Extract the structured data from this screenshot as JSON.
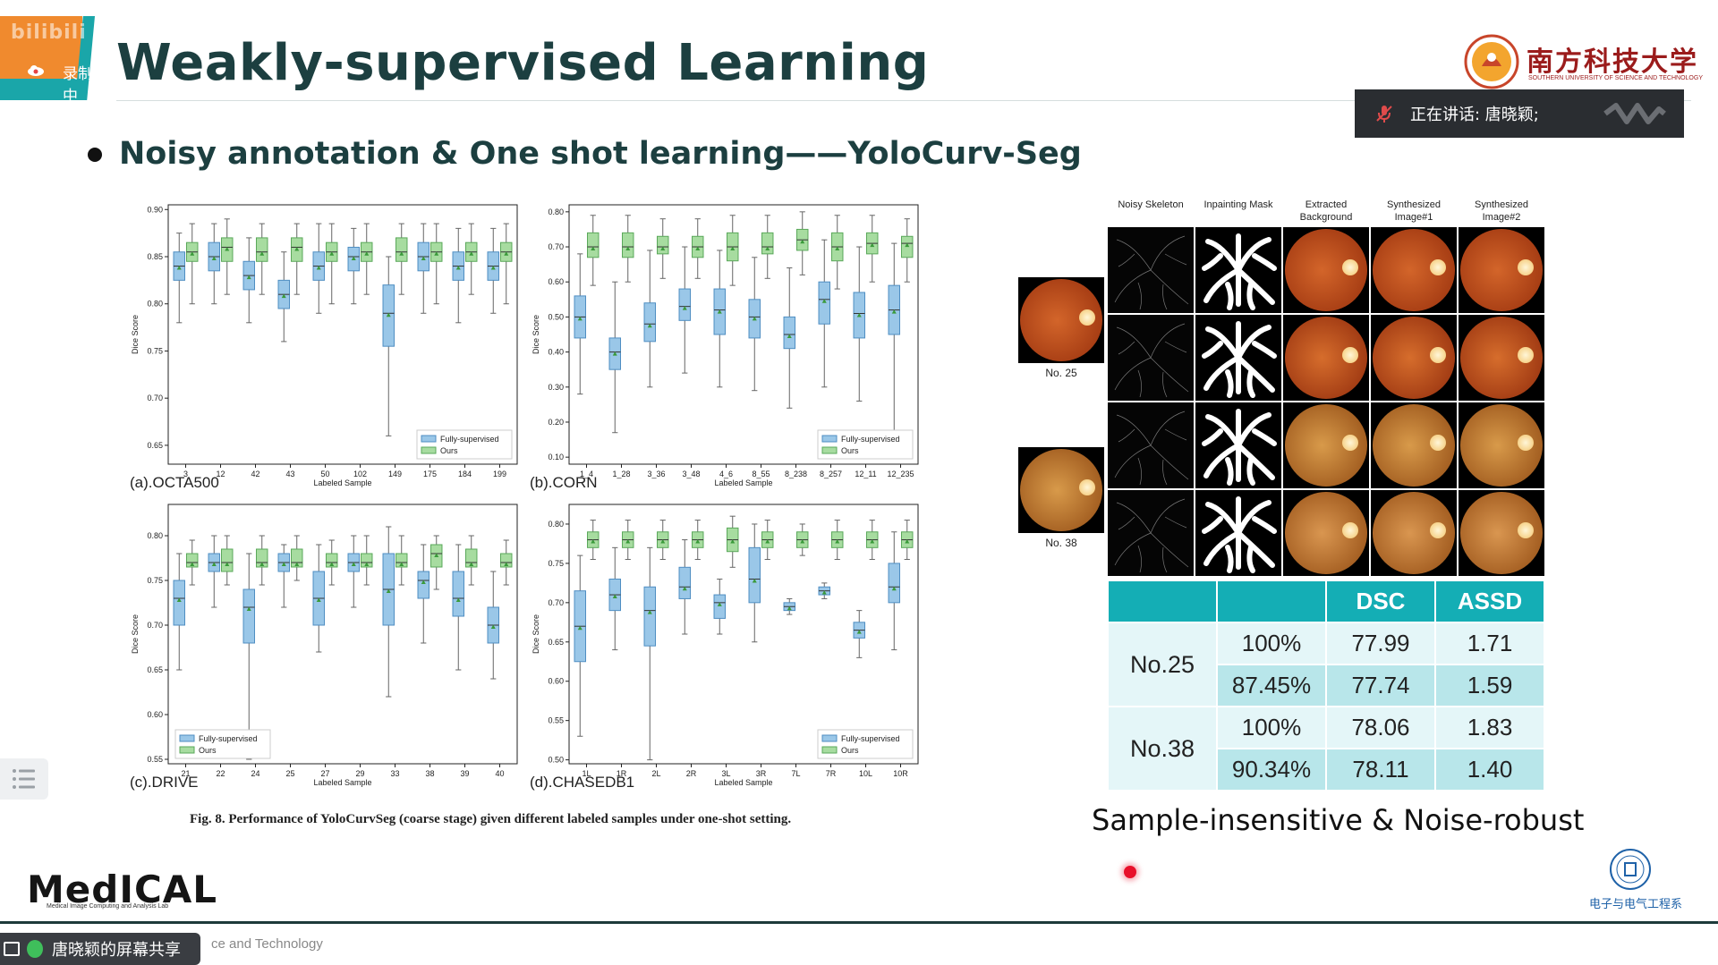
{
  "overlay": {
    "watermark": "bilibili",
    "recording_label": "录制中",
    "speaking_label": "正在讲话: 唐晓颖;",
    "share_label": "唐晓颖的屏幕共享"
  },
  "slide": {
    "title": "Weakly-supervised Learning",
    "bullet": "Noisy annotation & One shot learning——YoloCurv-Seg",
    "university_name": "南方科技大学",
    "university_sub": "SOUTHERN UNIVERSITY OF SCIENCE AND TECHNOLOGY",
    "figure_caption": "Fig. 8. Performance of YoloCurvSeg (coarse stage) given different labeled samples under one-shot setting.",
    "grid_headers": [
      "Noisy Skeleton",
      "Inpainting Mask",
      "Extracted Background",
      "Synthesized Image#1",
      "Synthesized Image#2"
    ],
    "side_labels": [
      "No. 25",
      "No. 38"
    ],
    "table": {
      "headers": [
        "",
        "",
        "DSC",
        "ASSD"
      ],
      "rows": [
        {
          "sample": "No.25",
          "pct": "100%",
          "dsc": "77.99",
          "assd": "1.71"
        },
        {
          "sample": "",
          "pct": "87.45%",
          "dsc": "77.74",
          "assd": "1.59"
        },
        {
          "sample": "No.38",
          "pct": "100%",
          "dsc": "78.06",
          "assd": "1.83"
        },
        {
          "sample": "",
          "pct": "90.34%",
          "dsc": "78.11",
          "assd": "1.40"
        }
      ]
    },
    "tagline": "Sample-insensitive & Noise-robust",
    "lab_name": "MedICAL",
    "lab_sub": "Medical Image Computing and Analysis Lab",
    "dept_name": "电子与电气工程系",
    "footer": "ce and Technology"
  },
  "colors": {
    "teal": "#14aeb5",
    "orange": "#f08a2e",
    "fully": "#9ac7e8",
    "ours": "#a7dca0"
  },
  "chart_data": [
    {
      "type": "box",
      "caption": "(a).OCTA500",
      "xlabel": "Labeled Sample",
      "ylabel": "Dice Score",
      "categories": [
        "3",
        "12",
        "42",
        "43",
        "50",
        "102",
        "149",
        "175",
        "184",
        "199"
      ],
      "yticks": [
        "0.65",
        "0.70",
        "0.75",
        "0.80",
        "0.85",
        "0.90"
      ],
      "ylim": [
        0.63,
        0.905
      ],
      "legend": [
        "Fully-supervised",
        "Ours"
      ],
      "series": [
        {
          "name": "Fully-supervised",
          "medians": [
            0.84,
            0.85,
            0.83,
            0.81,
            0.84,
            0.85,
            0.79,
            0.85,
            0.84,
            0.84
          ],
          "q1": [
            0.825,
            0.835,
            0.815,
            0.795,
            0.825,
            0.835,
            0.755,
            0.835,
            0.825,
            0.825
          ],
          "q3": [
            0.855,
            0.865,
            0.845,
            0.825,
            0.855,
            0.86,
            0.82,
            0.865,
            0.855,
            0.855
          ],
          "wlo": [
            0.78,
            0.8,
            0.78,
            0.76,
            0.79,
            0.8,
            0.66,
            0.79,
            0.78,
            0.79
          ],
          "whi": [
            0.875,
            0.885,
            0.87,
            0.855,
            0.885,
            0.88,
            0.85,
            0.885,
            0.88,
            0.88
          ]
        },
        {
          "name": "Ours",
          "medians": [
            0.855,
            0.86,
            0.855,
            0.86,
            0.855,
            0.855,
            0.855,
            0.855,
            0.855,
            0.855
          ],
          "q1": [
            0.845,
            0.845,
            0.845,
            0.845,
            0.845,
            0.845,
            0.845,
            0.845,
            0.845,
            0.845
          ],
          "q3": [
            0.865,
            0.87,
            0.87,
            0.87,
            0.865,
            0.865,
            0.87,
            0.865,
            0.865,
            0.865
          ],
          "wlo": [
            0.8,
            0.81,
            0.81,
            0.81,
            0.8,
            0.81,
            0.81,
            0.8,
            0.81,
            0.8
          ],
          "whi": [
            0.885,
            0.89,
            0.885,
            0.885,
            0.885,
            0.885,
            0.885,
            0.885,
            0.885,
            0.885
          ]
        }
      ]
    },
    {
      "type": "box",
      "caption": "(b).CORN",
      "xlabel": "Labeled Sample",
      "ylabel": "Dice Score",
      "categories": [
        "1_4",
        "1_28",
        "3_36",
        "3_48",
        "4_6",
        "8_55",
        "8_238",
        "8_257",
        "12_11",
        "12_235"
      ],
      "yticks": [
        "0.10",
        "0.20",
        "0.30",
        "0.40",
        "0.50",
        "0.60",
        "0.70",
        "0.80"
      ],
      "ylim": [
        0.08,
        0.82
      ],
      "legend": [
        "Fully-supervised",
        "Ours"
      ],
      "series": [
        {
          "name": "Fully-supervised",
          "medians": [
            0.5,
            0.4,
            0.48,
            0.53,
            0.52,
            0.5,
            0.45,
            0.55,
            0.51,
            0.52
          ],
          "q1": [
            0.44,
            0.35,
            0.43,
            0.49,
            0.45,
            0.44,
            0.41,
            0.48,
            0.44,
            0.45
          ],
          "q3": [
            0.56,
            0.44,
            0.54,
            0.58,
            0.58,
            0.55,
            0.5,
            0.6,
            0.57,
            0.59
          ],
          "wlo": [
            0.28,
            0.17,
            0.3,
            0.34,
            0.3,
            0.29,
            0.24,
            0.3,
            0.26,
            0.13
          ],
          "whi": [
            0.68,
            0.6,
            0.69,
            0.7,
            0.69,
            0.67,
            0.64,
            0.72,
            0.7,
            0.71
          ]
        },
        {
          "name": "Ours",
          "medians": [
            0.7,
            0.7,
            0.7,
            0.7,
            0.7,
            0.7,
            0.72,
            0.7,
            0.71,
            0.71
          ],
          "q1": [
            0.67,
            0.67,
            0.68,
            0.67,
            0.66,
            0.68,
            0.69,
            0.66,
            0.68,
            0.67
          ],
          "q3": [
            0.74,
            0.74,
            0.73,
            0.73,
            0.74,
            0.74,
            0.75,
            0.74,
            0.74,
            0.73
          ],
          "wlo": [
            0.59,
            0.6,
            0.61,
            0.61,
            0.59,
            0.61,
            0.62,
            0.58,
            0.6,
            0.6
          ],
          "whi": [
            0.79,
            0.79,
            0.78,
            0.78,
            0.79,
            0.79,
            0.8,
            0.79,
            0.79,
            0.78
          ]
        }
      ]
    },
    {
      "type": "box",
      "caption": "(c).DRIVE",
      "xlabel": "Labeled Sample",
      "ylabel": "Dice Score",
      "categories": [
        "21",
        "22",
        "24",
        "25",
        "27",
        "29",
        "33",
        "38",
        "39",
        "40"
      ],
      "yticks": [
        "0.55",
        "0.60",
        "0.65",
        "0.70",
        "0.75",
        "0.80"
      ],
      "ylim": [
        0.545,
        0.835
      ],
      "legend": [
        "Fully-supervised",
        "Ours"
      ],
      "series": [
        {
          "name": "Fully-supervised",
          "medians": [
            0.73,
            0.77,
            0.72,
            0.77,
            0.73,
            0.77,
            0.74,
            0.75,
            0.73,
            0.7
          ],
          "q1": [
            0.7,
            0.76,
            0.68,
            0.76,
            0.7,
            0.76,
            0.7,
            0.73,
            0.71,
            0.68
          ],
          "q3": [
            0.75,
            0.78,
            0.74,
            0.78,
            0.76,
            0.78,
            0.78,
            0.76,
            0.76,
            0.72
          ],
          "wlo": [
            0.65,
            0.72,
            0.55,
            0.72,
            0.67,
            0.72,
            0.62,
            0.68,
            0.65,
            0.64
          ],
          "whi": [
            0.78,
            0.8,
            0.78,
            0.79,
            0.79,
            0.8,
            0.81,
            0.79,
            0.79,
            0.76
          ]
        },
        {
          "name": "Ours",
          "medians": [
            0.77,
            0.77,
            0.77,
            0.77,
            0.77,
            0.77,
            0.77,
            0.78,
            0.77,
            0.77
          ],
          "q1": [
            0.765,
            0.76,
            0.765,
            0.765,
            0.765,
            0.765,
            0.765,
            0.765,
            0.765,
            0.765
          ],
          "q3": [
            0.78,
            0.785,
            0.785,
            0.785,
            0.78,
            0.78,
            0.78,
            0.79,
            0.785,
            0.78
          ],
          "wlo": [
            0.745,
            0.745,
            0.745,
            0.75,
            0.745,
            0.745,
            0.745,
            0.74,
            0.745,
            0.745
          ],
          "whi": [
            0.795,
            0.8,
            0.8,
            0.8,
            0.795,
            0.8,
            0.8,
            0.8,
            0.8,
            0.795
          ]
        }
      ]
    },
    {
      "type": "box",
      "caption": "(d).CHASEDB1",
      "xlabel": "Labeled Sample",
      "ylabel": "Dice Score",
      "categories": [
        "1L",
        "1R",
        "2L",
        "2R",
        "3L",
        "3R",
        "7L",
        "7R",
        "10L",
        "10R"
      ],
      "yticks": [
        "0.50",
        "0.55",
        "0.60",
        "0.65",
        "0.70",
        "0.75",
        "0.80"
      ],
      "ylim": [
        0.495,
        0.825
      ],
      "legend": [
        "Fully-supervised",
        "Ours"
      ],
      "series": [
        {
          "name": "Fully-supervised",
          "medians": [
            0.67,
            0.71,
            0.69,
            0.72,
            0.7,
            0.73,
            0.695,
            0.715,
            0.665,
            0.72
          ],
          "q1": [
            0.625,
            0.69,
            0.645,
            0.705,
            0.68,
            0.7,
            0.69,
            0.71,
            0.655,
            0.7
          ],
          "q3": [
            0.715,
            0.73,
            0.72,
            0.745,
            0.71,
            0.77,
            0.7,
            0.72,
            0.675,
            0.75
          ],
          "wlo": [
            0.53,
            0.64,
            0.5,
            0.66,
            0.66,
            0.65,
            0.685,
            0.705,
            0.63,
            0.64
          ],
          "whi": [
            0.76,
            0.77,
            0.77,
            0.78,
            0.73,
            0.8,
            0.705,
            0.725,
            0.69,
            0.79
          ]
        },
        {
          "name": "Ours",
          "medians": [
            0.78,
            0.78,
            0.78,
            0.78,
            0.78,
            0.78,
            0.78,
            0.78,
            0.78,
            0.78
          ],
          "q1": [
            0.77,
            0.77,
            0.77,
            0.77,
            0.765,
            0.77,
            0.77,
            0.77,
            0.77,
            0.77
          ],
          "q3": [
            0.79,
            0.79,
            0.79,
            0.79,
            0.795,
            0.79,
            0.79,
            0.79,
            0.79,
            0.79
          ],
          "wlo": [
            0.755,
            0.755,
            0.755,
            0.755,
            0.745,
            0.755,
            0.76,
            0.755,
            0.755,
            0.755
          ],
          "whi": [
            0.805,
            0.805,
            0.805,
            0.805,
            0.81,
            0.805,
            0.8,
            0.805,
            0.805,
            0.805
          ]
        }
      ]
    }
  ]
}
